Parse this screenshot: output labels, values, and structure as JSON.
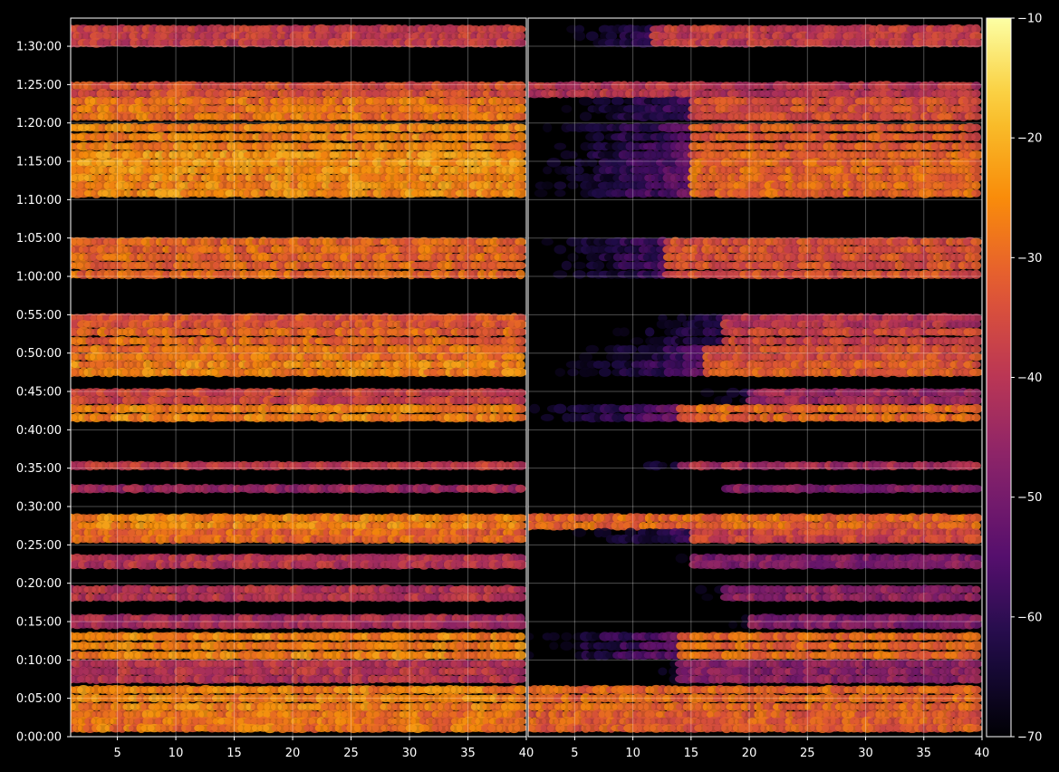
{
  "chart_data": {
    "type": "heatmap",
    "title": "",
    "xlabel": "",
    "ylabel": "",
    "colormap": "inferno",
    "background": "#000000",
    "axis_color": "#ffffff",
    "grid": true,
    "panels": [
      {
        "id": "left",
        "xlim": [
          1,
          40
        ],
        "x_ticks": [
          5,
          10,
          15,
          20,
          25,
          30,
          35,
          40
        ],
        "x_tick_labels": [
          "5",
          "10",
          "15",
          "20",
          "25",
          "30",
          "35",
          "40"
        ]
      },
      {
        "id": "right",
        "xlim": [
          1,
          40
        ],
        "x_ticks": [
          5,
          10,
          15,
          20,
          25,
          30,
          35,
          40
        ],
        "x_tick_labels": [
          "5",
          "10",
          "15",
          "20",
          "25",
          "30",
          "35",
          "40"
        ]
      }
    ],
    "y_axis": {
      "unit": "seconds",
      "range": [
        0,
        5620
      ],
      "ticks": [
        0,
        300,
        600,
        900,
        1200,
        1500,
        1800,
        2100,
        2400,
        2700,
        3000,
        3300,
        3600,
        3900,
        4200,
        4500,
        4800,
        5100,
        5400
      ],
      "tick_labels": [
        "0:00:00",
        "0:05:00",
        "0:10:00",
        "0:15:00",
        "0:20:00",
        "0:25:00",
        "0:30:00",
        "0:35:00",
        "0:40:00",
        "0:45:00",
        "0:50:00",
        "0:55:00",
        "1:00:00",
        "1:05:00",
        "1:10:00",
        "1:15:00",
        "1:20:00",
        "1:25:00",
        "1:30:00"
      ]
    },
    "colorbar": {
      "range": [
        -70,
        -10
      ],
      "ticks": [
        -70,
        -60,
        -50,
        -40,
        -30,
        -20,
        -10
      ],
      "tick_labels": [
        "−70",
        "−60",
        "−50",
        "−40",
        "−30",
        "−20",
        "−10"
      ]
    },
    "bands": [
      {
        "t0": 5400,
        "t1": 5560,
        "left": -38,
        "right": -38,
        "right_onset_x": 12
      },
      {
        "t0": 5000,
        "t1": 5120,
        "left": -34,
        "right": -40
      },
      {
        "t0": 4820,
        "t1": 5000,
        "left": -28,
        "right": -34,
        "right_onset_x": 15
      },
      {
        "t0": 4580,
        "t1": 4800,
        "left": -26,
        "right": -32,
        "right_onset_x": 15
      },
      {
        "t0": 4400,
        "t1": 4580,
        "left": -24,
        "right": -30,
        "right_onset_x": 15
      },
      {
        "t0": 4220,
        "t1": 4400,
        "left": -25,
        "right": -30,
        "right_onset_x": 15
      },
      {
        "t0": 3720,
        "t1": 3900,
        "left": -30,
        "right": -34,
        "right_onset_x": 13
      },
      {
        "t0": 3580,
        "t1": 3720,
        "left": -30,
        "right": -34,
        "right_onset_x": 13
      },
      {
        "t0": 3200,
        "t1": 3300,
        "left": -33,
        "right": -40,
        "right_onset_x": 18
      },
      {
        "t0": 3060,
        "t1": 3200,
        "left": -30,
        "right": -36,
        "right_onset_x": 18
      },
      {
        "t0": 2940,
        "t1": 3060,
        "left": -28,
        "right": -34,
        "right_onset_x": 16
      },
      {
        "t0": 2820,
        "t1": 2940,
        "left": -26,
        "right": -32,
        "right_onset_x": 16
      },
      {
        "t0": 2600,
        "t1": 2720,
        "left": -36,
        "right": -44,
        "right_onset_x": 20
      },
      {
        "t0": 2460,
        "t1": 2600,
        "left": -26,
        "right": -30,
        "right_onset_x": 14
      },
      {
        "t0": 2080,
        "t1": 2160,
        "left": -38,
        "right": -42,
        "right_onset_x": 14
      },
      {
        "t0": 1900,
        "t1": 1980,
        "left": -44,
        "right": -48,
        "right_onset_x": 18
      },
      {
        "t0": 1620,
        "t1": 1740,
        "left": -26,
        "right": -30,
        "right_onset_x": 1
      },
      {
        "t0": 1520,
        "t1": 1620,
        "left": -30,
        "right": -36,
        "right_onset_x": 15
      },
      {
        "t0": 1320,
        "t1": 1420,
        "left": -40,
        "right": -48,
        "right_onset_x": 15
      },
      {
        "t0": 1060,
        "t1": 1180,
        "left": -40,
        "right": -46,
        "right_onset_x": 18
      },
      {
        "t0": 850,
        "t1": 950,
        "left": -42,
        "right": -48,
        "right_onset_x": 20
      },
      {
        "t0": 600,
        "t1": 820,
        "left": -26,
        "right": -30,
        "right_onset_x": 14
      },
      {
        "t0": 420,
        "t1": 600,
        "left": -40,
        "right": -46,
        "right_onset_x": 14
      },
      {
        "t0": 200,
        "t1": 400,
        "left": -26,
        "right": -30,
        "right_onset_x": 1
      },
      {
        "t0": 40,
        "t1": 200,
        "left": -28,
        "right": -32,
        "right_onset_x": 1
      }
    ]
  }
}
